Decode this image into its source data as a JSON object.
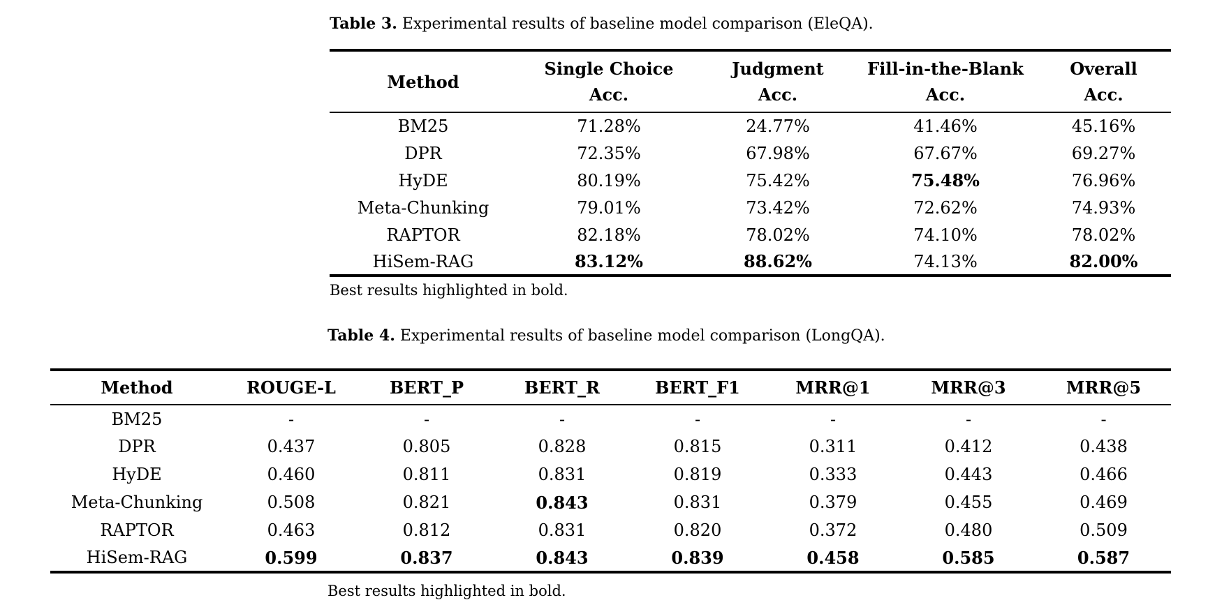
{
  "page": {
    "background": "#ffffff",
    "text_color": "#000000"
  },
  "table3": {
    "caption_label": "Table 3.",
    "caption_text": "Experimental results of baseline model comparison (EleQA).",
    "headers": [
      {
        "title": "Method",
        "sub": ""
      },
      {
        "title": "Single Choice",
        "sub": "Acc."
      },
      {
        "title": "Judgment",
        "sub": "Acc."
      },
      {
        "title": "Fill-in-the-Blank",
        "sub": "Acc."
      },
      {
        "title": "Overall",
        "sub": "Acc."
      }
    ],
    "rows": [
      {
        "method": "BM25",
        "values": [
          "71.28%",
          "24.77%",
          "41.46%",
          "45.16%"
        ],
        "bold": [
          false,
          false,
          false,
          false
        ]
      },
      {
        "method": "DPR",
        "values": [
          "72.35%",
          "67.98%",
          "67.67%",
          "69.27%"
        ],
        "bold": [
          false,
          false,
          false,
          false
        ]
      },
      {
        "method": "HyDE",
        "values": [
          "80.19%",
          "75.42%",
          "75.48%",
          "76.96%"
        ],
        "bold": [
          false,
          false,
          true,
          false
        ]
      },
      {
        "method": "Meta-Chunking",
        "values": [
          "79.01%",
          "73.42%",
          "72.62%",
          "74.93%"
        ],
        "bold": [
          false,
          false,
          false,
          false
        ]
      },
      {
        "method": "RAPTOR",
        "values": [
          "82.18%",
          "78.02%",
          "74.10%",
          "78.02%"
        ],
        "bold": [
          false,
          false,
          false,
          false
        ]
      },
      {
        "method": "HiSem-RAG",
        "values": [
          "83.12%",
          "88.62%",
          "74.13%",
          "82.00%"
        ],
        "bold": [
          true,
          true,
          false,
          true
        ]
      }
    ],
    "footnote": "Best results highlighted in bold."
  },
  "table4": {
    "caption_label": "Table 4.",
    "caption_text": "Experimental results of baseline model comparison (LongQA).",
    "headers": [
      {
        "title": "Method",
        "sub": ""
      },
      {
        "title": "ROUGE-L",
        "sub": ""
      },
      {
        "title": "BERT_P",
        "sub": ""
      },
      {
        "title": "BERT_R",
        "sub": ""
      },
      {
        "title": "BERT_F1",
        "sub": ""
      },
      {
        "title": "MRR@1",
        "sub": ""
      },
      {
        "title": "MRR@3",
        "sub": ""
      },
      {
        "title": "MRR@5",
        "sub": ""
      }
    ],
    "rows": [
      {
        "method": "BM25",
        "values": [
          "-",
          "-",
          "-",
          "-",
          "-",
          "-",
          "-"
        ],
        "bold": [
          false,
          false,
          false,
          false,
          false,
          false,
          false
        ]
      },
      {
        "method": "DPR",
        "values": [
          "0.437",
          "0.805",
          "0.828",
          "0.815",
          "0.311",
          "0.412",
          "0.438"
        ],
        "bold": [
          false,
          false,
          false,
          false,
          false,
          false,
          false
        ]
      },
      {
        "method": "HyDE",
        "values": [
          "0.460",
          "0.811",
          "0.831",
          "0.819",
          "0.333",
          "0.443",
          "0.466"
        ],
        "bold": [
          false,
          false,
          false,
          false,
          false,
          false,
          false
        ]
      },
      {
        "method": "Meta-Chunking",
        "values": [
          "0.508",
          "0.821",
          "0.843",
          "0.831",
          "0.379",
          "0.455",
          "0.469"
        ],
        "bold": [
          false,
          false,
          true,
          false,
          false,
          false,
          false
        ]
      },
      {
        "method": "RAPTOR",
        "values": [
          "0.463",
          "0.812",
          "0.831",
          "0.820",
          "0.372",
          "0.480",
          "0.509"
        ],
        "bold": [
          false,
          false,
          false,
          false,
          false,
          false,
          false
        ]
      },
      {
        "method": "HiSem-RAG",
        "values": [
          "0.599",
          "0.837",
          "0.843",
          "0.839",
          "0.458",
          "0.585",
          "0.587"
        ],
        "bold": [
          true,
          true,
          true,
          true,
          true,
          true,
          true
        ]
      }
    ],
    "footnote": "Best results highlighted in bold."
  }
}
